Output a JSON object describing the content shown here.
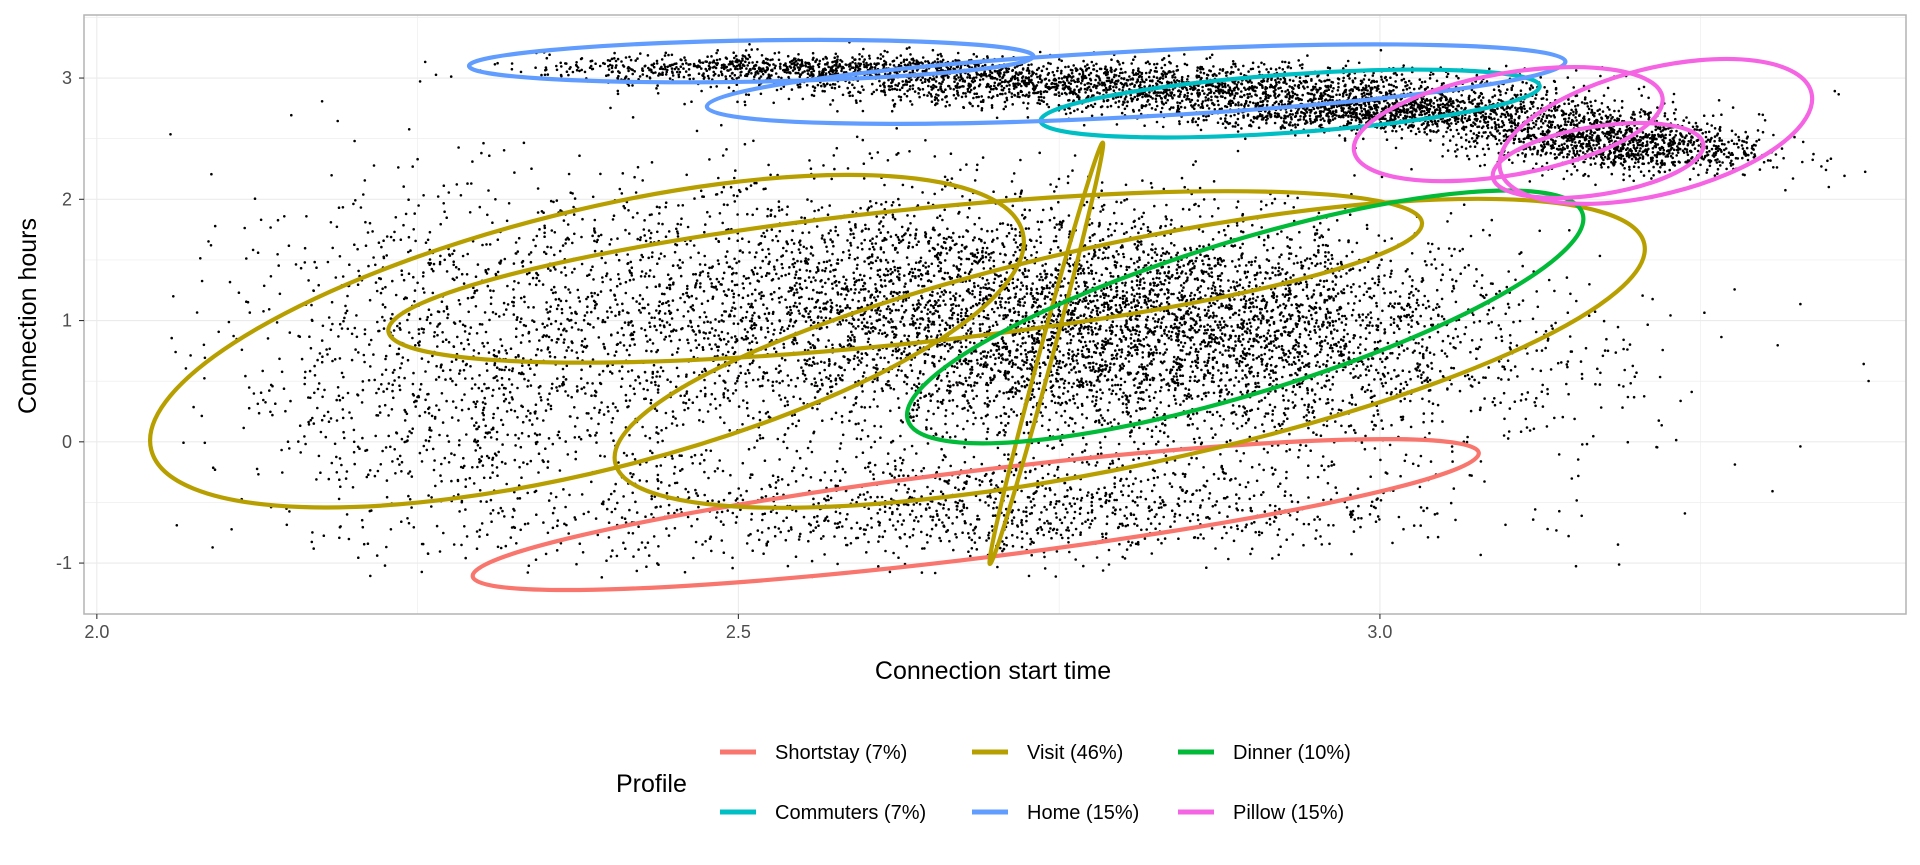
{
  "chart_data": {
    "type": "scatter",
    "title": "",
    "xlabel": "Connection start time",
    "ylabel": "Connection hours",
    "xlim": [
      1.99,
      3.41
    ],
    "ylim": [
      -1.42,
      3.52
    ],
    "x_ticks": [
      2.0,
      2.5,
      3.0
    ],
    "x_tick_labels": [
      "2.0",
      "2.5",
      "3.0"
    ],
    "y_ticks": [
      -1,
      0,
      1,
      2,
      3
    ],
    "y_tick_labels": [
      "-1",
      "0",
      "1",
      "2",
      "3"
    ],
    "grid": true,
    "legend": {
      "title": "Profile",
      "position": "bottom"
    },
    "series": [
      {
        "name": "Shortstay (7%)",
        "color": "#F8766D",
        "ellipses": [
          {
            "cx": 2.685,
            "cy": -0.6,
            "rx": 0.395,
            "ry": 0.36,
            "angle": -7
          }
        ]
      },
      {
        "name": "Visit (46%)",
        "color": "#B79F00",
        "ellipses": [
          {
            "cx": 2.382,
            "cy": 0.83,
            "rx": 0.35,
            "ry": 1.07,
            "angle": -14
          },
          {
            "cx": 2.63,
            "cy": 1.36,
            "rx": 0.405,
            "ry": 0.55,
            "angle": -6
          },
          {
            "cx": 2.805,
            "cy": 0.73,
            "rx": 0.41,
            "ry": 0.92,
            "angle": -12
          },
          {
            "cx": 2.74,
            "cy": 0.73,
            "rx": 0.17,
            "ry": 0.055,
            "angle": -75
          }
        ]
      },
      {
        "name": "Dinner (10%)",
        "color": "#00BA38",
        "ellipses": [
          {
            "cx": 2.895,
            "cy": 1.03,
            "rx": 0.275,
            "ry": 0.63,
            "angle": -17
          }
        ]
      },
      {
        "name": "Commuters (7%)",
        "color": "#00BFC4",
        "ellipses": [
          {
            "cx": 2.93,
            "cy": 2.79,
            "rx": 0.195,
            "ry": 0.24,
            "angle": -4
          }
        ]
      },
      {
        "name": "Home (15%)",
        "color": "#619CFF",
        "ellipses": [
          {
            "cx": 2.51,
            "cy": 3.14,
            "rx": 0.22,
            "ry": 0.17,
            "angle": -1
          },
          {
            "cx": 2.81,
            "cy": 2.95,
            "rx": 0.335,
            "ry": 0.27,
            "angle": -3
          }
        ]
      },
      {
        "name": "Pillow (15%)",
        "color": "#F564E3",
        "ellipses": [
          {
            "cx": 3.1,
            "cy": 2.62,
            "rx": 0.122,
            "ry": 0.42,
            "angle": -10
          },
          {
            "cx": 3.215,
            "cy": 2.56,
            "rx": 0.125,
            "ry": 0.52,
            "angle": -14
          },
          {
            "cx": 3.17,
            "cy": 2.32,
            "rx": 0.083,
            "ry": 0.28,
            "angle": -9
          }
        ]
      }
    ],
    "scatter_clusters": [
      {
        "x": 2.7,
        "y": 0.95,
        "sx": 0.19,
        "sy": 0.55,
        "rho": -0.25,
        "n": 5200
      },
      {
        "x": 2.3,
        "y": 0.45,
        "sx": 0.1,
        "sy": 0.75,
        "rho": -0.1,
        "n": 1300
      },
      {
        "x": 2.88,
        "y": 1.05,
        "sx": 0.12,
        "sy": 0.4,
        "rho": -0.2,
        "n": 1500
      },
      {
        "x": 2.7,
        "y": -0.55,
        "sx": 0.16,
        "sy": 0.22,
        "rho": 0.0,
        "n": 1100
      },
      {
        "x": 2.55,
        "y": 3.08,
        "sx": 0.1,
        "sy": 0.06,
        "rho": 0.0,
        "n": 900
      },
      {
        "x": 2.82,
        "y": 2.93,
        "sx": 0.15,
        "sy": 0.1,
        "rho": -0.2,
        "n": 2000
      },
      {
        "x": 3.0,
        "y": 2.72,
        "sx": 0.08,
        "sy": 0.08,
        "rho": 0.0,
        "n": 1200
      },
      {
        "x": 3.18,
        "y": 2.48,
        "sx": 0.06,
        "sy": 0.13,
        "rho": -0.3,
        "n": 1300
      }
    ]
  }
}
